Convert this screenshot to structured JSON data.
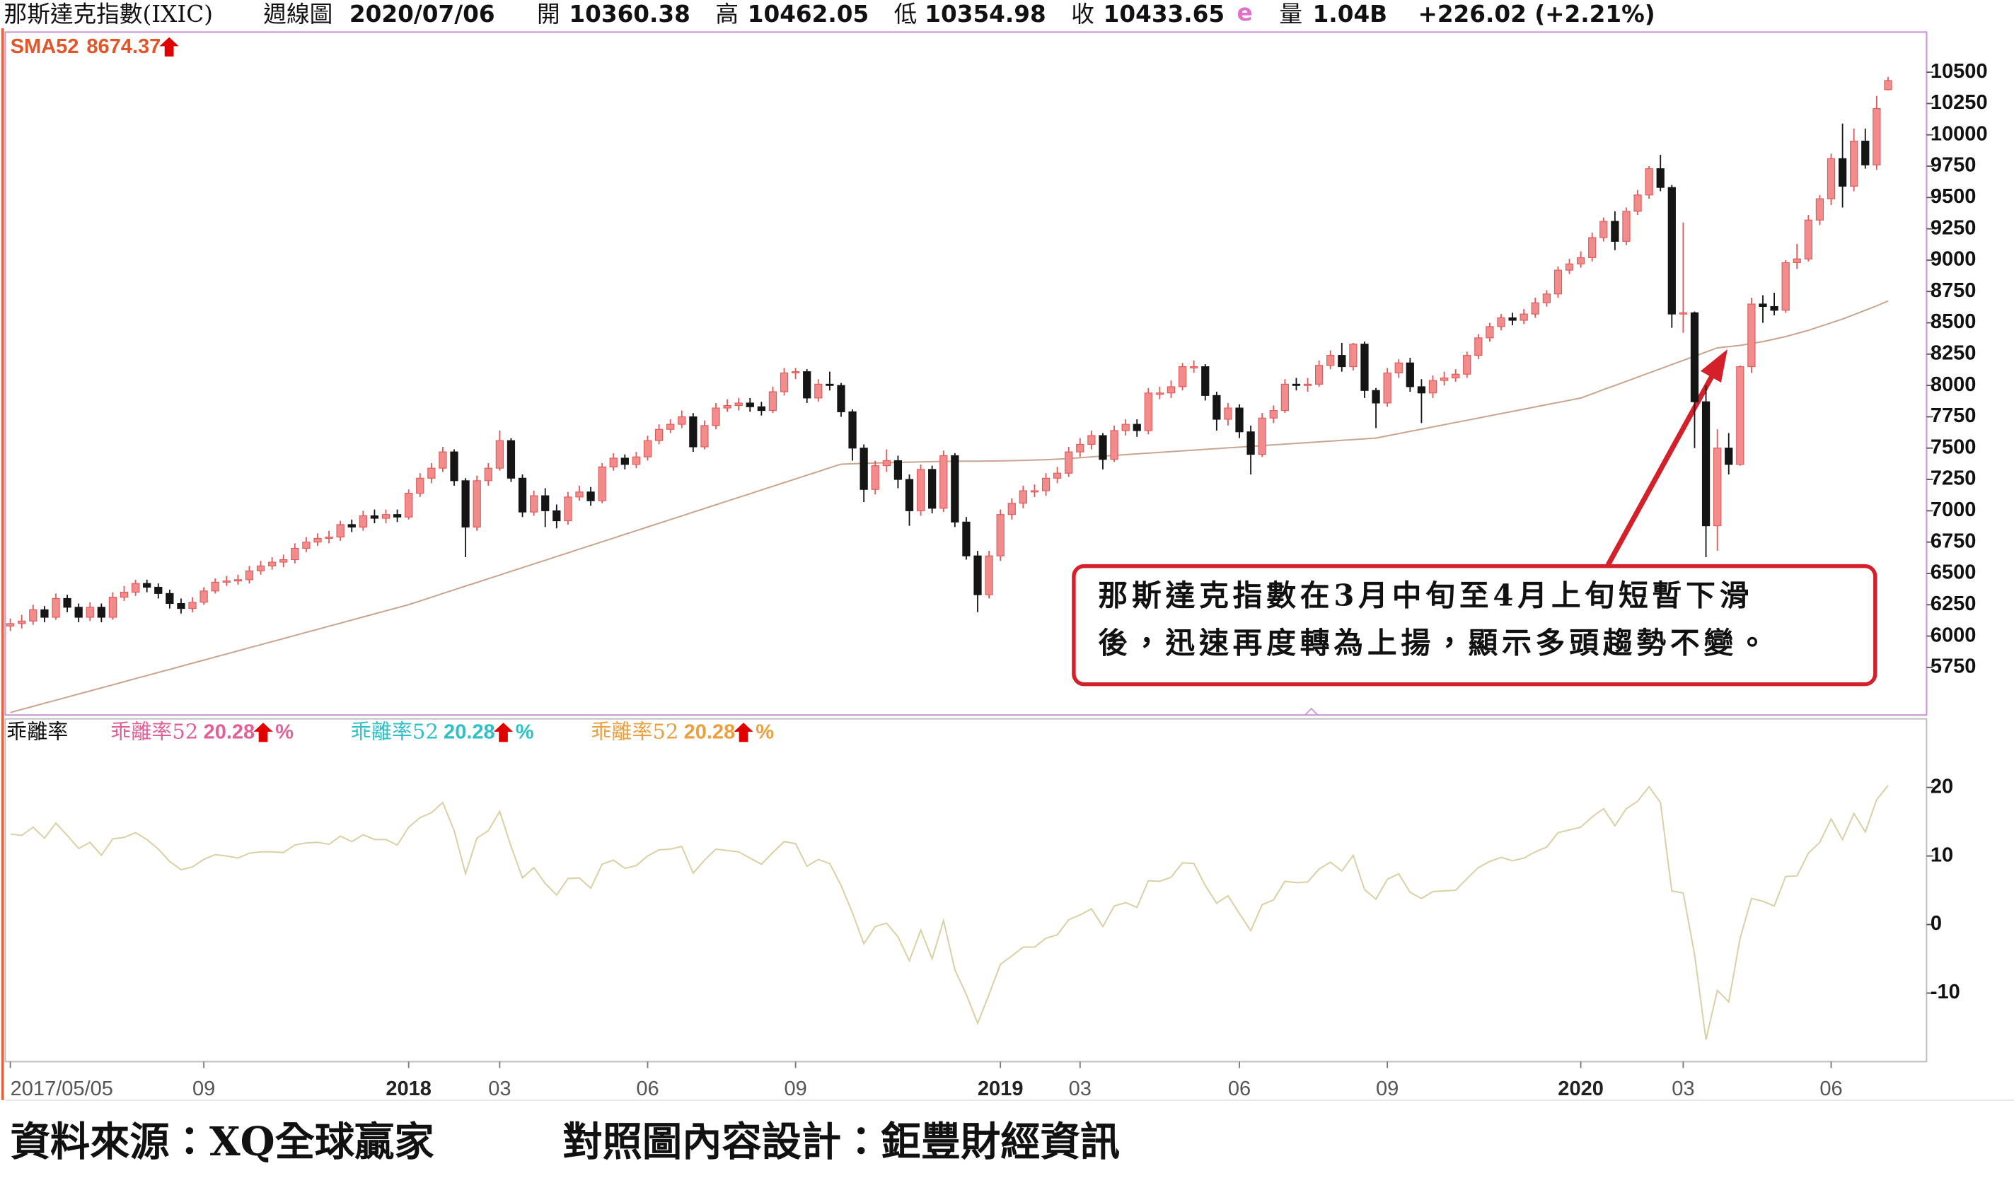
{
  "chart_data": {
    "type": "candlestick",
    "title": "那斯達克指數(IXIC)",
    "period": "週線圖",
    "date": "2020/07/06",
    "quote_labels": [
      "開",
      "高",
      "低",
      "收"
    ],
    "estimate_mark": "e",
    "volume_label": "量",
    "volume": "1.04B",
    "change": "+226.02 (+2.21%)",
    "categories": [
      "2017/05/05",
      null,
      null,
      null,
      null,
      null,
      null,
      null,
      null,
      null,
      null,
      null,
      null,
      null,
      null,
      null,
      null,
      "09",
      null,
      null,
      null,
      null,
      null,
      null,
      null,
      null,
      null,
      null,
      null,
      null,
      null,
      null,
      null,
      null,
      null,
      "2018",
      null,
      null,
      null,
      null,
      null,
      null,
      null,
      "03",
      null,
      null,
      null,
      null,
      null,
      null,
      null,
      null,
      null,
      null,
      null,
      null,
      "06",
      null,
      null,
      null,
      null,
      null,
      null,
      null,
      null,
      null,
      null,
      null,
      null,
      "09",
      null,
      null,
      null,
      null,
      null,
      null,
      null,
      null,
      null,
      null,
      null,
      null,
      null,
      null,
      null,
      null,
      null,
      "2019",
      null,
      null,
      null,
      null,
      null,
      null,
      "03",
      null,
      null,
      null,
      null,
      null,
      null,
      null,
      null,
      null,
      null,
      null,
      null,
      null,
      "06",
      null,
      null,
      null,
      null,
      null,
      null,
      null,
      null,
      null,
      null,
      null,
      null,
      "09",
      null,
      null,
      null,
      null,
      null,
      null,
      null,
      null,
      null,
      null,
      null,
      null,
      null,
      null,
      null,
      null,
      "2020",
      null,
      null,
      null,
      null,
      null,
      null,
      null,
      null,
      "03",
      null,
      null,
      null,
      null,
      null,
      null,
      null,
      null,
      null,
      null,
      null,
      null,
      "06",
      null,
      null,
      null,
      null,
      null
    ],
    "open": [
      6080,
      6100,
      6120,
      6210,
      6150,
      6300,
      6230,
      6150,
      6230,
      6150,
      6310,
      6350,
      6420,
      6390,
      6340,
      6260,
      6220,
      6270,
      6360,
      6430,
      6440,
      6450,
      6520,
      6560,
      6590,
      6610,
      6700,
      6750,
      6780,
      6790,
      6890,
      6870,
      6960,
      6940,
      6970,
      6950,
      7140,
      7260,
      7340,
      7470,
      7240,
      6870,
      7240,
      7340,
      7560,
      7260,
      6990,
      7120,
      7000,
      6920,
      7110,
      7150,
      7080,
      7350,
      7420,
      7370,
      7430,
      7560,
      7650,
      7690,
      7750,
      7510,
      7680,
      7820,
      7840,
      7860,
      7830,
      7800,
      7950,
      8100,
      8110,
      7900,
      8010,
      8000,
      7790,
      7500,
      7170,
      7360,
      7400,
      7250,
      7000,
      7330,
      7020,
      7440,
      6910,
      6640,
      6330,
      6640,
      6970,
      7060,
      7160,
      7160,
      7260,
      7300,
      7470,
      7530,
      7600,
      7410,
      7640,
      7690,
      7640,
      7940,
      7940,
      7990,
      8150,
      8150,
      7920,
      7730,
      7820,
      7630,
      7450,
      7740,
      7800,
      8010,
      8000,
      8010,
      8160,
      8240,
      8150,
      8330,
      7960,
      7860,
      8100,
      8180,
      7990,
      7940,
      8040,
      8060,
      8090,
      8240,
      8380,
      8470,
      8540,
      8520,
      8570,
      8660,
      8730,
      8920,
      8970,
      9020,
      9180,
      9310,
      9150,
      9390,
      9520,
      9730,
      9580,
      8570,
      8580,
      7870,
      6880,
      7500,
      7370,
      8150,
      8650,
      8630,
      8600,
      8980,
      9010,
      9320,
      9490,
      9810,
      9590,
      9950,
      9760,
      10360.38
    ],
    "high": [
      6140,
      6170,
      6250,
      6240,
      6340,
      6330,
      6260,
      6270,
      6260,
      6350,
      6400,
      6450,
      6450,
      6420,
      6370,
      6300,
      6310,
      6390,
      6460,
      6480,
      6490,
      6560,
      6600,
      6630,
      6650,
      6740,
      6790,
      6820,
      6840,
      6920,
      6930,
      7000,
      7010,
      7010,
      7010,
      7170,
      7300,
      7380,
      7510,
      7490,
      7260,
      7280,
      7380,
      7640,
      7580,
      7290,
      7160,
      7180,
      7050,
      7150,
      7200,
      7190,
      7380,
      7460,
      7450,
      7470,
      7600,
      7690,
      7730,
      7800,
      7780,
      7720,
      7860,
      7890,
      7900,
      7900,
      7870,
      7990,
      8140,
      8140,
      8130,
      8050,
      8110,
      8020,
      7810,
      7530,
      7400,
      7490,
      7440,
      7290,
      7370,
      7360,
      7480,
      7460,
      6950,
      6680,
      6680,
      7010,
      7100,
      7200,
      7210,
      7300,
      7350,
      7510,
      7580,
      7640,
      7620,
      7680,
      7730,
      7730,
      7980,
      7990,
      8040,
      8180,
      8200,
      8170,
      7950,
      7860,
      7850,
      7680,
      7780,
      7840,
      8050,
      8060,
      8060,
      8200,
      8280,
      8340,
      8340,
      8350,
      7980,
      8140,
      8210,
      8220,
      8050,
      8080,
      8110,
      8130,
      8270,
      8410,
      8500,
      8570,
      8580,
      8610,
      8700,
      8760,
      8950,
      9010,
      9070,
      9220,
      9340,
      9390,
      9420,
      9560,
      9750,
      9840,
      9600,
      9300,
      8590,
      8000,
      7650,
      7620,
      8160,
      8700,
      8720,
      8740,
      9000,
      9130,
      9360,
      9520,
      9850,
      10090,
      10050,
      10050,
      10310,
      10462.05
    ],
    "low": [
      6040,
      6060,
      6090,
      6110,
      6130,
      6190,
      6110,
      6120,
      6110,
      6130,
      6280,
      6320,
      6350,
      6300,
      6220,
      6180,
      6190,
      6250,
      6340,
      6400,
      6410,
      6420,
      6490,
      6530,
      6550,
      6580,
      6670,
      6720,
      6740,
      6760,
      6830,
      6840,
      6900,
      6900,
      6910,
      6930,
      7110,
      7220,
      7310,
      7200,
      6630,
      6840,
      7200,
      7320,
      7230,
      6950,
      6960,
      6870,
      6860,
      6890,
      7080,
      7040,
      7060,
      7320,
      7330,
      7340,
      7400,
      7530,
      7620,
      7660,
      7470,
      7490,
      7650,
      7790,
      7800,
      7790,
      7760,
      7780,
      7920,
      8050,
      7860,
      7870,
      7960,
      7750,
      7400,
      7070,
      7130,
      7310,
      7180,
      6880,
      6960,
      6980,
      6990,
      6870,
      6610,
      6190,
      6300,
      6600,
      6930,
      7020,
      7110,
      7120,
      7220,
      7270,
      7430,
      7490,
      7330,
      7390,
      7600,
      7590,
      7610,
      7890,
      7900,
      7960,
      8100,
      7880,
      7640,
      7680,
      7580,
      7290,
      7430,
      7700,
      7780,
      7960,
      7950,
      7990,
      8130,
      8110,
      8120,
      7900,
      7660,
      7830,
      8060,
      7950,
      7700,
      7900,
      8000,
      8030,
      8060,
      8210,
      8350,
      8440,
      8480,
      8490,
      8540,
      8630,
      8700,
      8890,
      8940,
      8990,
      9150,
      9080,
      9120,
      9360,
      9490,
      9550,
      8460,
      8420,
      7500,
      6630,
      6680,
      7290,
      7360,
      8100,
      8500,
      8560,
      8580,
      8930,
      8990,
      9280,
      9440,
      9420,
      9550,
      9730,
      9720,
      10354.98
    ],
    "close": [
      6100,
      6120,
      6210,
      6150,
      6300,
      6230,
      6150,
      6230,
      6150,
      6310,
      6350,
      6420,
      6390,
      6340,
      6260,
      6220,
      6270,
      6360,
      6430,
      6440,
      6450,
      6520,
      6560,
      6590,
      6610,
      6700,
      6750,
      6780,
      6790,
      6890,
      6870,
      6960,
      6940,
      6970,
      6950,
      7140,
      7260,
      7340,
      7470,
      7240,
      6870,
      7240,
      7340,
      7560,
      7260,
      6990,
      7120,
      7000,
      6920,
      7110,
      7150,
      7080,
      7350,
      7420,
      7370,
      7430,
      7560,
      7650,
      7690,
      7750,
      7510,
      7680,
      7820,
      7840,
      7860,
      7830,
      7800,
      7950,
      8100,
      8110,
      7900,
      8010,
      8000,
      7790,
      7500,
      7170,
      7360,
      7400,
      7250,
      7000,
      7330,
      7020,
      7440,
      6910,
      6640,
      6330,
      6640,
      6970,
      7060,
      7160,
      7160,
      7260,
      7300,
      7470,
      7530,
      7600,
      7410,
      7640,
      7690,
      7640,
      7940,
      7940,
      7990,
      8150,
      8150,
      7920,
      7730,
      7820,
      7630,
      7450,
      7740,
      7800,
      8010,
      8000,
      8010,
      8160,
      8240,
      8150,
      8330,
      7960,
      7860,
      8100,
      8180,
      7990,
      7940,
      8040,
      8060,
      8090,
      8240,
      8380,
      8470,
      8540,
      8520,
      8570,
      8660,
      8730,
      8920,
      8970,
      9020,
      9180,
      9310,
      9150,
      9390,
      9520,
      9730,
      9580,
      8570,
      8580,
      7870,
      6880,
      7500,
      7370,
      8150,
      8650,
      8630,
      8600,
      8980,
      9010,
      9320,
      9490,
      9810,
      9590,
      9950,
      9760,
      10210,
      10433.65
    ],
    "up_color": "#f28b8b",
    "up_edge": "#e05858",
    "down_color": "#151515",
    "ylim": [
      5370,
      10820
    ],
    "yticks": [
      5750,
      6000,
      6250,
      6500,
      6750,
      7000,
      7250,
      7500,
      7750,
      8000,
      8250,
      8500,
      8750,
      9000,
      9250,
      9500,
      9750,
      10000,
      10250,
      10500
    ],
    "sma": {
      "name": "SMA52",
      "color": "#c9a48e",
      "label_color": "#e2562a",
      "values": [
        5390,
        5415,
        5439,
        5464,
        5488,
        5513,
        5538,
        5562,
        5587,
        5611,
        5636,
        5661,
        5685,
        5710,
        5734,
        5759,
        5784,
        5808,
        5833,
        5857,
        5882,
        5907,
        5931,
        5956,
        5980,
        6005,
        6030,
        6054,
        6079,
        6103,
        6128,
        6153,
        6177,
        6202,
        6226,
        6251,
        6280,
        6310,
        6340,
        6369,
        6399,
        6428,
        6458,
        6487,
        6517,
        6546,
        6576,
        6605,
        6635,
        6664,
        6694,
        6723,
        6753,
        6782,
        6812,
        6841,
        6871,
        6900,
        6930,
        6959,
        6989,
        7018,
        7048,
        7077,
        7107,
        7136,
        7166,
        7195,
        7225,
        7254,
        7284,
        7313,
        7343,
        7372,
        7375,
        7378,
        7381,
        7384,
        7386,
        7388,
        7390,
        7392,
        7394,
        7395,
        7396,
        7396,
        7397,
        7398,
        7400,
        7402,
        7405,
        7408,
        7412,
        7417,
        7423,
        7430,
        7436,
        7442,
        7448,
        7454,
        7460,
        7466,
        7472,
        7478,
        7484,
        7490,
        7496,
        7502,
        7508,
        7514,
        7520,
        7526,
        7532,
        7538,
        7544,
        7550,
        7556,
        7562,
        7568,
        7574,
        7580,
        7598,
        7616,
        7634,
        7651,
        7669,
        7687,
        7705,
        7722,
        7740,
        7758,
        7776,
        7793,
        7811,
        7829,
        7847,
        7864,
        7882,
        7900,
        7933,
        7967,
        8000,
        8033,
        8067,
        8100,
        8133,
        8167,
        8200,
        8233,
        8267,
        8300,
        8310,
        8320,
        8335,
        8350,
        8370,
        8390,
        8415,
        8440,
        8470,
        8500,
        8530,
        8565,
        8600,
        8635,
        8674.37
      ]
    },
    "annotation": [
      "那斯達克指數在3月中旬至4月上旬短暫下滑",
      "後，迅速再度轉為上揚，顯示多頭趨勢不變。"
    ],
    "annotation_color": "#d3202a",
    "deviation": {
      "title": "乖離率",
      "name": "乖離率52",
      "unit": "%",
      "legend_colors": [
        "#e0609a",
        "#2ec0c6",
        "#eba040"
      ],
      "color": "#d9d0a4",
      "ylim": [
        -20,
        30
      ],
      "yticks": [
        -10,
        0,
        10,
        20
      ],
      "values": [
        13.2,
        13.0,
        14.2,
        12.6,
        14.8,
        13.0,
        11.1,
        12.0,
        10.1,
        12.5,
        12.7,
        13.4,
        12.4,
        11.0,
        9.2,
        8.0,
        8.4,
        9.5,
        10.2,
        10.0,
        9.7,
        10.4,
        10.6,
        10.6,
        10.5,
        11.6,
        11.9,
        12.0,
        11.7,
        12.9,
        12.1,
        13.1,
        12.4,
        12.4,
        11.6,
        14.2,
        15.6,
        16.3,
        17.8,
        13.7,
        7.4,
        12.6,
        13.7,
        16.5,
        11.4,
        6.8,
        8.3,
        6.0,
        4.3,
        6.7,
        6.8,
        5.3,
        8.8,
        9.4,
        8.2,
        8.6,
        10.0,
        10.9,
        11.0,
        11.4,
        7.5,
        9.4,
        11.0,
        10.8,
        10.6,
        9.7,
        8.8,
        10.5,
        12.1,
        11.8,
        8.5,
        9.5,
        8.9,
        5.7,
        1.7,
        -2.8,
        -0.3,
        0.2,
        -1.8,
        -5.3,
        -0.8,
        -5.0,
        0.6,
        -6.6,
        -10.2,
        -14.4,
        -10.2,
        -5.8,
        -4.6,
        -3.3,
        -3.3,
        -2.0,
        -1.5,
        0.7,
        1.4,
        2.3,
        -0.3,
        2.7,
        3.2,
        2.5,
        6.4,
        6.3,
        6.9,
        9.0,
        8.9,
        5.7,
        3.1,
        4.2,
        1.6,
        -0.9,
        2.9,
        3.6,
        6.3,
        6.1,
        6.2,
        8.1,
        9.1,
        7.8,
        10.1,
        5.1,
        3.7,
        6.6,
        7.4,
        4.7,
        3.8,
        4.8,
        4.9,
        5.0,
        6.7,
        8.3,
        9.2,
        9.8,
        9.3,
        9.7,
        10.6,
        11.3,
        13.4,
        13.8,
        14.2,
        15.7,
        16.9,
        14.4,
        16.9,
        18.0,
        20.1,
        17.8,
        4.9,
        4.6,
        -4.4,
        -16.8,
        -9.6,
        -11.3,
        -2.0,
        3.8,
        3.4,
        2.7,
        7.0,
        7.1,
        10.4,
        12.0,
        15.4,
        12.4,
        16.2,
        13.5,
        18.2,
        20.28
      ]
    }
  },
  "footer": {
    "source": "資料來源：XQ全球贏家",
    "design": "對照圖內容設計：鉅豐財經資訊"
  }
}
